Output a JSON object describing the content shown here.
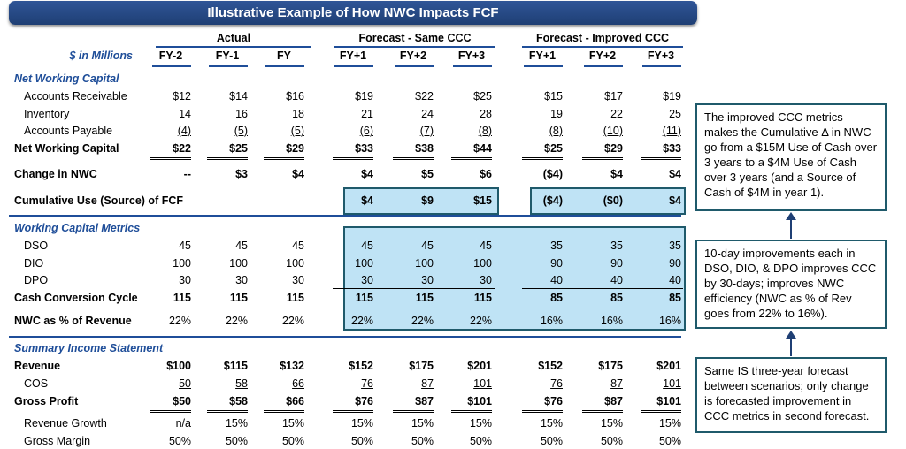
{
  "title": "Illustrative Example of How NWC Impacts FCF",
  "units": "$ in Millions",
  "groups": [
    "Actual",
    "Forecast - Same CCC",
    "Forecast - Improved CCC"
  ],
  "columns": [
    "FY-2",
    "FY-1",
    "FY",
    "FY+1",
    "FY+2",
    "FY+3",
    "FY+1",
    "FY+2",
    "FY+3"
  ],
  "sections": {
    "nwc": "Net Working Capital",
    "metrics": "Working Capital Metrics",
    "income": "Summary Income Statement"
  },
  "rows": {
    "ar": {
      "label": "Accounts Receivable",
      "values": [
        "$12",
        "$14",
        "$16",
        "$19",
        "$22",
        "$25",
        "$15",
        "$17",
        "$19"
      ]
    },
    "inv": {
      "label": "Inventory",
      "values": [
        "14",
        "16",
        "18",
        "21",
        "24",
        "28",
        "19",
        "22",
        "25"
      ]
    },
    "ap": {
      "label": "Accounts Payable",
      "values": [
        "(4)",
        "(5)",
        "(5)",
        "(6)",
        "(7)",
        "(8)",
        "(8)",
        "(10)",
        "(11)"
      ]
    },
    "nwc": {
      "label": "Net Working Capital",
      "values": [
        "$22",
        "$25",
        "$29",
        "$33",
        "$38",
        "$44",
        "$25",
        "$29",
        "$33"
      ]
    },
    "chg": {
      "label": "Change in NWC",
      "values": [
        "--",
        "$3",
        "$4",
        "$4",
        "$5",
        "$6",
        "($4)",
        "$4",
        "$4"
      ]
    },
    "cum": {
      "label": "Cumulative Use (Source) of FCF",
      "values": [
        "",
        "",
        "",
        "$4",
        "$9",
        "$15",
        "($4)",
        "($0)",
        "$4"
      ]
    },
    "dso": {
      "label": "DSO",
      "values": [
        "45",
        "45",
        "45",
        "45",
        "45",
        "45",
        "35",
        "35",
        "35"
      ]
    },
    "dio": {
      "label": "DIO",
      "values": [
        "100",
        "100",
        "100",
        "100",
        "100",
        "100",
        "90",
        "90",
        "90"
      ]
    },
    "dpo": {
      "label": "DPO",
      "values": [
        "30",
        "30",
        "30",
        "30",
        "30",
        "30",
        "40",
        "40",
        "40"
      ]
    },
    "ccc": {
      "label": "Cash Conversion Cycle",
      "values": [
        "115",
        "115",
        "115",
        "115",
        "115",
        "115",
        "85",
        "85",
        "85"
      ]
    },
    "nwcpct": {
      "label": "NWC as % of Revenue",
      "values": [
        "22%",
        "22%",
        "22%",
        "22%",
        "22%",
        "22%",
        "16%",
        "16%",
        "16%"
      ]
    },
    "rev": {
      "label": "Revenue",
      "values": [
        "$100",
        "$115",
        "$132",
        "$152",
        "$175",
        "$201",
        "$152",
        "$175",
        "$201"
      ]
    },
    "cos": {
      "label": "COS",
      "values": [
        "50",
        "58",
        "66",
        "76",
        "87",
        "101",
        "76",
        "87",
        "101"
      ]
    },
    "gp": {
      "label": "Gross Profit",
      "values": [
        "$50",
        "$58",
        "$66",
        "$76",
        "$87",
        "$101",
        "$76",
        "$87",
        "$101"
      ]
    },
    "growth": {
      "label": "Revenue Growth",
      "values": [
        "n/a",
        "15%",
        "15%",
        "15%",
        "15%",
        "15%",
        "15%",
        "15%",
        "15%"
      ]
    },
    "margin": {
      "label": "Gross Margin",
      "values": [
        "50%",
        "50%",
        "50%",
        "50%",
        "50%",
        "50%",
        "50%",
        "50%",
        "50%"
      ]
    }
  },
  "notes": [
    "The improved CCC metrics makes the Cumulative Δ in NWC go from a $15M Use of Cash over 3 years to a $4M Use of Cash over 3 years (and  a Source of Cash of $4M in year 1).",
    "10-day improvements each in DSO, DIO, & DPO improves CCC by 30-days; improves NWC efficiency (NWC as % of Rev goes from 22% to 16%).",
    "Same IS three-year forecast between scenarios; only change is forecasted improvement in CCC metrics in second forecast."
  ],
  "colors": {
    "title_bg": "#2f5597",
    "accent": "#1f4e99",
    "highlight": "#bfe3f5",
    "box_border": "#1f5a6b"
  }
}
